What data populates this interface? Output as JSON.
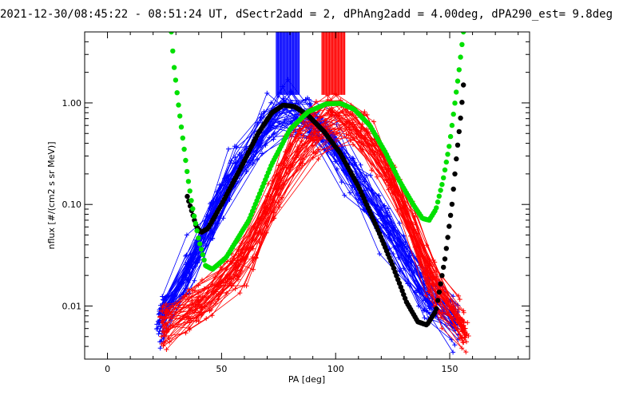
{
  "chart_data": {
    "type": "scatter",
    "title": "2021-12-30/08:45:22 - 08:51:24 UT, dSectr2add = 2, dPhAng2add = 4.00deg, dPA290_est=   9.8deg",
    "xlabel": "PA [deg]",
    "ylabel": "nflux [#/(cm2 s sr MeV)]",
    "xlim": [
      -10,
      185
    ],
    "ylim": [
      0.003,
      5.0
    ],
    "yscale": "log",
    "x_ticks": [
      0,
      50,
      100,
      150
    ],
    "x_tick_labels": [
      "0",
      "50",
      "100",
      "150"
    ],
    "y_ticks": [
      0.01,
      0.1,
      1.0
    ],
    "y_tick_labels": [
      "0.01",
      "0.10",
      "1.00"
    ],
    "grid": false,
    "legend": false,
    "colors": {
      "blue": "#0000ff",
      "red": "#ff0000",
      "black": "#000000",
      "green": "#00e000"
    },
    "vertical_markers": [
      {
        "color": "#0000ff",
        "x_range": [
          74,
          84
        ],
        "y_range": [
          1.2,
          5.0
        ]
      },
      {
        "color": "#ff0000",
        "x_range": [
          94,
          104
        ],
        "y_range": [
          1.2,
          5.0
        ]
      }
    ],
    "series": [
      {
        "color": "#0000ff",
        "marker": "plus",
        "bundle": {
          "count": 45,
          "path": [
            [
              24,
              0.007
            ],
            [
              38,
              0.03
            ],
            [
              55,
              0.2
            ],
            [
              76,
              0.92
            ],
            [
              92,
              0.65
            ],
            [
              108,
              0.17
            ],
            [
              125,
              0.05
            ],
            [
              140,
              0.012
            ],
            [
              152,
              0.007
            ]
          ],
          "spread": 0.45,
          "x_spread": 3
        }
      },
      {
        "color": "#ff0000",
        "marker": "plus",
        "bundle": {
          "count": 45,
          "path": [
            [
              25,
              0.006
            ],
            [
              44,
              0.012
            ],
            [
              62,
              0.03
            ],
            [
              80,
              0.3
            ],
            [
              102,
              0.85
            ],
            [
              118,
              0.35
            ],
            [
              132,
              0.08
            ],
            [
              145,
              0.012
            ],
            [
              156,
              0.006
            ]
          ],
          "spread": 0.45,
          "x_spread": 3
        }
      },
      {
        "color": "#000000",
        "marker": "dot",
        "curve": [
          [
            35,
            0.12
          ],
          [
            39,
            0.06
          ],
          [
            41,
            0.053
          ],
          [
            44,
            0.058
          ],
          [
            50,
            0.1
          ],
          [
            58,
            0.22
          ],
          [
            66,
            0.5
          ],
          [
            72,
            0.8
          ],
          [
            77,
            0.95
          ],
          [
            82,
            0.92
          ],
          [
            88,
            0.75
          ],
          [
            95,
            0.52
          ],
          [
            102,
            0.32
          ],
          [
            110,
            0.15
          ],
          [
            118,
            0.06
          ],
          [
            125,
            0.025
          ],
          [
            131,
            0.011
          ],
          [
            136,
            0.007
          ],
          [
            140,
            0.0065
          ],
          [
            144,
            0.009
          ],
          [
            148,
            0.03
          ],
          [
            151,
            0.1
          ],
          [
            153,
            0.3
          ],
          [
            155,
            0.8
          ],
          [
            156,
            1.5
          ]
        ]
      },
      {
        "color": "#00e000",
        "marker": "dot",
        "curve": [
          [
            28,
            5.0
          ],
          [
            29,
            2.5
          ],
          [
            31,
            1.0
          ],
          [
            33,
            0.45
          ],
          [
            35,
            0.2
          ],
          [
            37,
            0.1
          ],
          [
            40,
            0.045
          ],
          [
            43,
            0.025
          ],
          [
            46,
            0.023
          ],
          [
            52,
            0.03
          ],
          [
            62,
            0.07
          ],
          [
            72,
            0.25
          ],
          [
            80,
            0.55
          ],
          [
            88,
            0.82
          ],
          [
            96,
            0.98
          ],
          [
            102,
            0.99
          ],
          [
            108,
            0.87
          ],
          [
            115,
            0.6
          ],
          [
            122,
            0.32
          ],
          [
            128,
            0.17
          ],
          [
            134,
            0.1
          ],
          [
            138,
            0.073
          ],
          [
            141,
            0.07
          ],
          [
            144,
            0.09
          ],
          [
            147,
            0.17
          ],
          [
            150,
            0.4
          ],
          [
            152,
            0.9
          ],
          [
            154,
            2.0
          ],
          [
            156,
            5.0
          ]
        ]
      }
    ]
  }
}
